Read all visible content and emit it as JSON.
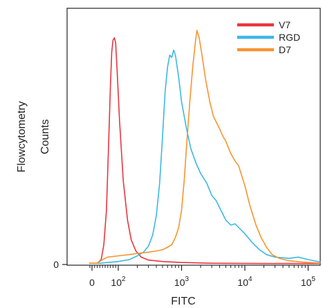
{
  "chart_data": {
    "type": "line",
    "xlabel": "FITC",
    "ylabel": [
      "Flowcytometry",
      "Counts"
    ],
    "x_scale": "log",
    "xlim": [
      -10,
      300000
    ],
    "ylim": [
      0,
      1.0
    ],
    "x_ticks": [
      {
        "value": 0,
        "base": "0",
        "exp": ""
      },
      {
        "value": 100,
        "base": "10",
        "exp": "2"
      },
      {
        "value": 1000,
        "base": "10",
        "exp": "3"
      },
      {
        "value": 10000,
        "base": "10",
        "exp": "4"
      },
      {
        "value": 100000,
        "base": "10",
        "exp": "5"
      }
    ],
    "y_ticks": [
      {
        "value": 0,
        "label": "0"
      }
    ],
    "grid": false,
    "legend_position": "top-right",
    "series": [
      {
        "name": "V7",
        "color": "#e8353f",
        "points": [
          [
            -10,
            0.005
          ],
          [
            20,
            0.005
          ],
          [
            35,
            0.02
          ],
          [
            45,
            0.08
          ],
          [
            55,
            0.22
          ],
          [
            62,
            0.45
          ],
          [
            70,
            0.72
          ],
          [
            75,
            0.86
          ],
          [
            80,
            0.91
          ],
          [
            85,
            0.92
          ],
          [
            90,
            0.9
          ],
          [
            95,
            0.8
          ],
          [
            105,
            0.58
          ],
          [
            120,
            0.34
          ],
          [
            140,
            0.18
          ],
          [
            160,
            0.1
          ],
          [
            190,
            0.055
          ],
          [
            230,
            0.03
          ],
          [
            300,
            0.018
          ],
          [
            500,
            0.012
          ],
          [
            1000,
            0.008
          ],
          [
            3000,
            0.005
          ],
          [
            20000,
            0.004
          ],
          [
            300000,
            0.004
          ]
        ]
      },
      {
        "name": "RGD",
        "color": "#3cb7e6",
        "points": [
          [
            -10,
            0.005
          ],
          [
            30,
            0.005
          ],
          [
            60,
            0.008
          ],
          [
            100,
            0.012
          ],
          [
            150,
            0.02
          ],
          [
            200,
            0.035
          ],
          [
            250,
            0.05
          ],
          [
            300,
            0.075
          ],
          [
            350,
            0.12
          ],
          [
            400,
            0.2
          ],
          [
            450,
            0.33
          ],
          [
            500,
            0.52
          ],
          [
            550,
            0.7
          ],
          [
            600,
            0.8
          ],
          [
            650,
            0.85
          ],
          [
            700,
            0.84
          ],
          [
            750,
            0.87
          ],
          [
            800,
            0.85
          ],
          [
            900,
            0.76
          ],
          [
            1000,
            0.66
          ],
          [
            1200,
            0.55
          ],
          [
            1400,
            0.47
          ],
          [
            1700,
            0.41
          ],
          [
            2000,
            0.37
          ],
          [
            2500,
            0.33
          ],
          [
            3000,
            0.28
          ],
          [
            3500,
            0.26
          ],
          [
            4000,
            0.23
          ],
          [
            5000,
            0.18
          ],
          [
            6000,
            0.16
          ],
          [
            7000,
            0.165
          ],
          [
            8000,
            0.15
          ],
          [
            10000,
            0.125
          ],
          [
            13000,
            0.09
          ],
          [
            17000,
            0.06
          ],
          [
            22000,
            0.04
          ],
          [
            30000,
            0.03
          ],
          [
            50000,
            0.025
          ],
          [
            70000,
            0.03
          ],
          [
            100000,
            0.02
          ],
          [
            200000,
            0.01
          ],
          [
            300000,
            0.008
          ]
        ]
      },
      {
        "name": "D7",
        "color": "#f7942f",
        "points": [
          [
            -10,
            0.005
          ],
          [
            20,
            0.005
          ],
          [
            40,
            0.02
          ],
          [
            60,
            0.03
          ],
          [
            100,
            0.035
          ],
          [
            150,
            0.04
          ],
          [
            200,
            0.045
          ],
          [
            300,
            0.05
          ],
          [
            400,
            0.055
          ],
          [
            500,
            0.06
          ],
          [
            600,
            0.07
          ],
          [
            700,
            0.08
          ],
          [
            800,
            0.11
          ],
          [
            900,
            0.15
          ],
          [
            1000,
            0.22
          ],
          [
            1100,
            0.34
          ],
          [
            1200,
            0.48
          ],
          [
            1350,
            0.66
          ],
          [
            1500,
            0.8
          ],
          [
            1650,
            0.9
          ],
          [
            1750,
            0.95
          ],
          [
            1900,
            0.92
          ],
          [
            2100,
            0.85
          ],
          [
            2400,
            0.75
          ],
          [
            2800,
            0.66
          ],
          [
            3200,
            0.6
          ],
          [
            3500,
            0.58
          ],
          [
            4000,
            0.55
          ],
          [
            4500,
            0.52
          ],
          [
            5000,
            0.5
          ],
          [
            6000,
            0.45
          ],
          [
            7000,
            0.42
          ],
          [
            8000,
            0.4
          ],
          [
            10000,
            0.32
          ],
          [
            12000,
            0.24
          ],
          [
            15000,
            0.16
          ],
          [
            18000,
            0.11
          ],
          [
            22000,
            0.07
          ],
          [
            27000,
            0.04
          ],
          [
            35000,
            0.025
          ],
          [
            50000,
            0.015
          ],
          [
            80000,
            0.01
          ],
          [
            150000,
            0.006
          ],
          [
            300000,
            0.005
          ]
        ]
      }
    ]
  }
}
